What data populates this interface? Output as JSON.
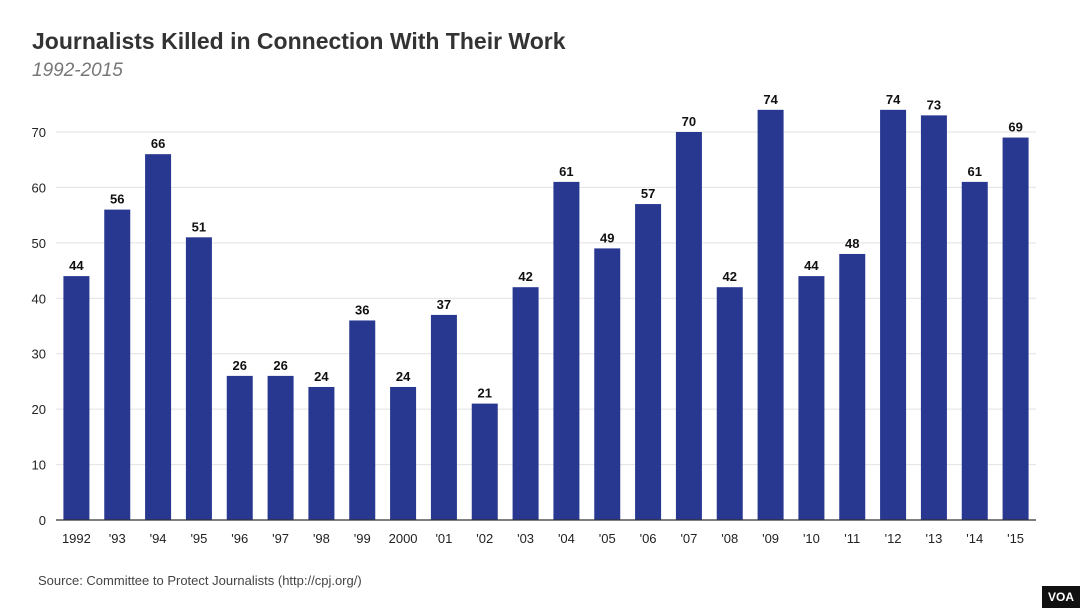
{
  "chart_data": {
    "type": "bar",
    "title": "Journalists Killed in Connection With Their Work",
    "subtitle": "1992-2015",
    "categories": [
      "1992",
      "'93",
      "'94",
      "'95",
      "'96",
      "'97",
      "'98",
      "'99",
      "2000",
      "'01",
      "'02",
      "'03",
      "'04",
      "'05",
      "'06",
      "'07",
      "'08",
      "'09",
      "'10",
      "'11",
      "'12",
      "'13",
      "'14",
      "'15"
    ],
    "values": [
      44,
      56,
      66,
      51,
      26,
      26,
      24,
      36,
      24,
      37,
      21,
      42,
      61,
      49,
      57,
      70,
      42,
      74,
      44,
      48,
      74,
      73,
      61,
      69
    ],
    "ylim": [
      0,
      80
    ],
    "yticks": [
      0,
      10,
      20,
      30,
      40,
      50,
      60,
      70
    ],
    "grid": true,
    "bar_color": "#283891",
    "data_labels": true
  },
  "source": "Source: Committee to Protect Journalists (http://cpj.org/)",
  "logo": "VOA"
}
